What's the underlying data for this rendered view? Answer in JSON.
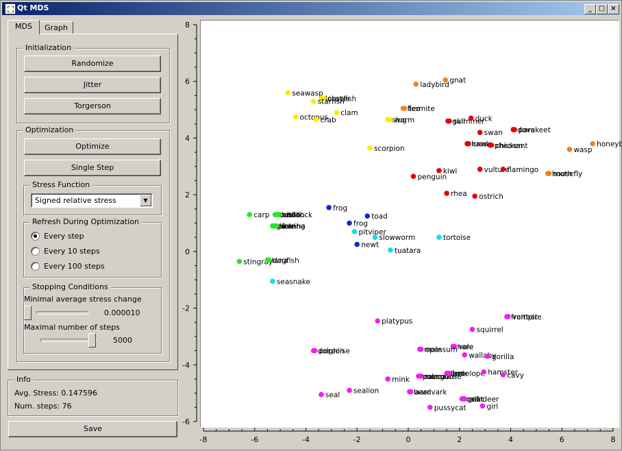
{
  "window": {
    "title": "Qt MDS"
  },
  "titlebar_buttons": {
    "minimize": "_",
    "maximize": "□",
    "close": "×"
  },
  "tabs": [
    {
      "label": "MDS"
    },
    {
      "label": "Graph"
    }
  ],
  "initialization": {
    "title": "Initialization",
    "randomize": "Randomize",
    "jitter": "Jitter",
    "torgerson": "Torgerson"
  },
  "optimization": {
    "title": "Optimization",
    "optimize": "Optimize",
    "single_step": "Single Step",
    "stress_function": {
      "title": "Stress Function",
      "value": "Signed relative stress"
    },
    "refresh": {
      "title": "Refresh During Optimization",
      "options": [
        {
          "label": "Every step",
          "checked": true
        },
        {
          "label": "Every 10 steps",
          "checked": false
        },
        {
          "label": "Every 100 steps",
          "checked": false
        }
      ]
    },
    "stopping": {
      "title": "Stopping Conditions",
      "min_change_label": "Minimal average stress change",
      "min_change_value": "0.000010",
      "min_change_level": 0.0,
      "max_steps_label": "Maximal number of steps",
      "max_steps_value": "5000",
      "max_steps_level": 0.9
    }
  },
  "info": {
    "title": "Info",
    "avg_stress": "Avg. Stress: 0.147596",
    "num_steps": "Num. steps: 76"
  },
  "save": "Save",
  "chart_data": {
    "type": "scatter",
    "xlim": [
      -8,
      8
    ],
    "ylim": [
      -6,
      8
    ],
    "xticks": [
      -8,
      -6,
      -4,
      -2,
      0,
      2,
      4,
      6,
      8
    ],
    "yticks": [
      -6,
      -4,
      -2,
      0,
      2,
      4,
      6,
      8
    ],
    "grid": false,
    "colors": {
      "yellow": "#ffea00",
      "orange": "#f0821e",
      "red": "#e60000",
      "blue": "#0a28dc",
      "cyan": "#14dcf0",
      "green": "#28e628",
      "magenta": "#f01ef0"
    },
    "points": [
      {
        "label": "seawasp",
        "x": -4.7,
        "y": 5.6,
        "color": "yellow"
      },
      {
        "label": "lobster",
        "x": -3.4,
        "y": 5.4,
        "color": "yellow"
      },
      {
        "label": "crayfish",
        "x": -3.3,
        "y": 5.4,
        "color": "yellow"
      },
      {
        "label": "starfish",
        "x": -3.7,
        "y": 5.3,
        "color": "yellow"
      },
      {
        "label": "clam",
        "x": -2.8,
        "y": 4.9,
        "color": "yellow"
      },
      {
        "label": "octopus",
        "x": -4.4,
        "y": 4.75,
        "color": "yellow"
      },
      {
        "label": "crab",
        "x": -3.6,
        "y": 4.65,
        "color": "yellow"
      },
      {
        "label": "slug",
        "x": -0.8,
        "y": 4.65,
        "color": "yellow"
      },
      {
        "label": "worm",
        "x": -0.7,
        "y": 4.65,
        "color": "yellow"
      },
      {
        "label": "scorpion",
        "x": -1.5,
        "y": 3.65,
        "color": "yellow"
      },
      {
        "label": "ladybird",
        "x": 0.3,
        "y": 5.9,
        "color": "orange"
      },
      {
        "label": "gnat",
        "x": 1.45,
        "y": 6.05,
        "color": "orange"
      },
      {
        "label": "flea",
        "x": -0.2,
        "y": 5.05,
        "color": "orange"
      },
      {
        "label": "termite",
        "x": -0.15,
        "y": 5.05,
        "color": "orange"
      },
      {
        "label": "wasp",
        "x": 6.3,
        "y": 3.6,
        "color": "orange"
      },
      {
        "label": "honeybee",
        "x": 7.2,
        "y": 3.8,
        "color": "orange"
      },
      {
        "label": "housefly",
        "x": 5.45,
        "y": 2.75,
        "color": "orange"
      },
      {
        "label": "moth",
        "x": 5.5,
        "y": 2.75,
        "color": "orange"
      },
      {
        "label": "gull",
        "x": 1.55,
        "y": 4.6,
        "color": "red"
      },
      {
        "label": "skimmer",
        "x": 1.6,
        "y": 4.6,
        "color": "red"
      },
      {
        "label": "duck",
        "x": 2.45,
        "y": 4.7,
        "color": "red"
      },
      {
        "label": "swan",
        "x": 2.8,
        "y": 4.2,
        "color": "red"
      },
      {
        "label": "dove",
        "x": 4.1,
        "y": 4.3,
        "color": "red"
      },
      {
        "label": "parakeet",
        "x": 4.15,
        "y": 4.3,
        "color": "red"
      },
      {
        "label": "hawk",
        "x": 2.3,
        "y": 3.8,
        "color": "red"
      },
      {
        "label": "crow",
        "x": 2.35,
        "y": 3.8,
        "color": "red"
      },
      {
        "label": "pheasant",
        "x": 3.2,
        "y": 3.75,
        "color": "red"
      },
      {
        "label": "chicken",
        "x": 3.25,
        "y": 3.75,
        "color": "red"
      },
      {
        "label": "kiwi",
        "x": 1.2,
        "y": 2.85,
        "color": "red"
      },
      {
        "label": "vulture",
        "x": 2.8,
        "y": 2.9,
        "color": "red"
      },
      {
        "label": "flamingo",
        "x": 3.7,
        "y": 2.9,
        "color": "red"
      },
      {
        "label": "penguin",
        "x": 0.2,
        "y": 2.65,
        "color": "red"
      },
      {
        "label": "rhea",
        "x": 1.5,
        "y": 2.05,
        "color": "red"
      },
      {
        "label": "ostrich",
        "x": 2.6,
        "y": 1.95,
        "color": "red"
      },
      {
        "label": "frog",
        "x": -3.1,
        "y": 1.55,
        "color": "blue"
      },
      {
        "label": "toad",
        "x": -1.6,
        "y": 1.25,
        "color": "blue"
      },
      {
        "label": "frog",
        "x": -2.3,
        "y": 1.0,
        "color": "blue"
      },
      {
        "label": "newt",
        "x": -2.0,
        "y": 0.25,
        "color": "blue"
      },
      {
        "label": "pitviper",
        "x": -2.1,
        "y": 0.7,
        "color": "cyan"
      },
      {
        "label": "slowworm",
        "x": -1.3,
        "y": 0.5,
        "color": "cyan"
      },
      {
        "label": "tortoise",
        "x": 1.2,
        "y": 0.5,
        "color": "cyan"
      },
      {
        "label": "tuatara",
        "x": -0.7,
        "y": 0.05,
        "color": "cyan"
      },
      {
        "label": "seasnake",
        "x": -5.3,
        "y": -1.05,
        "color": "cyan"
      },
      {
        "label": "carp",
        "x": -6.2,
        "y": 1.3,
        "color": "green"
      },
      {
        "label": "bass",
        "x": -5.2,
        "y": 1.3,
        "color": "green"
      },
      {
        "label": "catfish",
        "x": -5.15,
        "y": 1.3,
        "color": "green"
      },
      {
        "label": "haddock",
        "x": -5.1,
        "y": 1.3,
        "color": "green"
      },
      {
        "label": "chub",
        "x": -5.05,
        "y": 1.3,
        "color": "green"
      },
      {
        "label": "pike",
        "x": -5.3,
        "y": 0.9,
        "color": "green"
      },
      {
        "label": "piranha",
        "x": -5.25,
        "y": 0.9,
        "color": "green"
      },
      {
        "label": "herring",
        "x": -5.2,
        "y": 0.9,
        "color": "green"
      },
      {
        "label": "sole",
        "x": -5.15,
        "y": 0.9,
        "color": "green"
      },
      {
        "label": "stingray",
        "x": -6.6,
        "y": -0.35,
        "color": "green"
      },
      {
        "label": "tuna",
        "x": -5.5,
        "y": -0.3,
        "color": "green"
      },
      {
        "label": "dogfish",
        "x": -5.45,
        "y": -0.3,
        "color": "green"
      },
      {
        "label": "platypus",
        "x": -1.2,
        "y": -2.45,
        "color": "magenta"
      },
      {
        "label": "fruitbat",
        "x": 3.85,
        "y": -2.3,
        "color": "magenta"
      },
      {
        "label": "vampire",
        "x": 3.9,
        "y": -2.3,
        "color": "magenta"
      },
      {
        "label": "squirrel",
        "x": 2.5,
        "y": -2.75,
        "color": "magenta"
      },
      {
        "label": "hare",
        "x": 1.75,
        "y": -3.35,
        "color": "magenta"
      },
      {
        "label": "vole",
        "x": 1.8,
        "y": -3.35,
        "color": "magenta"
      },
      {
        "label": "dolphin",
        "x": -3.7,
        "y": -3.5,
        "color": "magenta"
      },
      {
        "label": "porpoise",
        "x": -3.65,
        "y": -3.5,
        "color": "magenta"
      },
      {
        "label": "mole",
        "x": 0.45,
        "y": -3.45,
        "color": "magenta"
      },
      {
        "label": "opossum",
        "x": 0.5,
        "y": -3.45,
        "color": "magenta"
      },
      {
        "label": "wallaby",
        "x": 2.2,
        "y": -3.65,
        "color": "magenta"
      },
      {
        "label": "gorilla",
        "x": 3.1,
        "y": -3.7,
        "color": "magenta"
      },
      {
        "label": "mink",
        "x": -0.8,
        "y": -4.5,
        "color": "magenta"
      },
      {
        "label": "polecat",
        "x": 0.4,
        "y": -4.4,
        "color": "magenta"
      },
      {
        "label": "mongoose",
        "x": 0.45,
        "y": -4.4,
        "color": "magenta"
      },
      {
        "label": "raccoon",
        "x": 0.5,
        "y": -4.4,
        "color": "magenta"
      },
      {
        "label": "lion",
        "x": 1.5,
        "y": -4.3,
        "color": "magenta"
      },
      {
        "label": "lynx",
        "x": 1.55,
        "y": -4.3,
        "color": "magenta"
      },
      {
        "label": "antelope",
        "x": 1.6,
        "y": -4.3,
        "color": "magenta"
      },
      {
        "label": "hamster",
        "x": 2.95,
        "y": -4.25,
        "color": "magenta"
      },
      {
        "label": "cavy",
        "x": 3.7,
        "y": -4.35,
        "color": "magenta"
      },
      {
        "label": "sealion",
        "x": -2.3,
        "y": -4.9,
        "color": "magenta"
      },
      {
        "label": "bear",
        "x": 0.05,
        "y": -4.95,
        "color": "magenta"
      },
      {
        "label": "aardvark",
        "x": 0.1,
        "y": -4.95,
        "color": "magenta"
      },
      {
        "label": "seal",
        "x": -3.4,
        "y": -5.05,
        "color": "magenta"
      },
      {
        "label": "calf",
        "x": 2.1,
        "y": -5.2,
        "color": "magenta"
      },
      {
        "label": "goat",
        "x": 2.15,
        "y": -5.2,
        "color": "magenta"
      },
      {
        "label": "reindeer",
        "x": 2.2,
        "y": -5.2,
        "color": "magenta"
      },
      {
        "label": "girl",
        "x": 2.9,
        "y": -5.45,
        "color": "magenta"
      },
      {
        "label": "pussycat",
        "x": 0.85,
        "y": -5.5,
        "color": "magenta"
      }
    ]
  }
}
